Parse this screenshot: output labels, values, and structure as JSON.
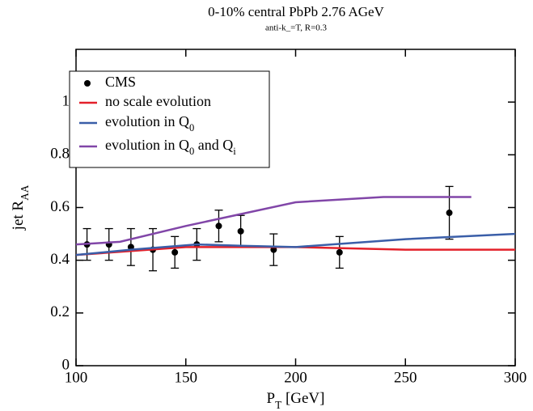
{
  "chart_data": {
    "type": "line",
    "title": "0-10% central PbPb 2.76 AGeV",
    "subtitle": "anti-k_=T, R=0.3",
    "xlabel": "P_T [GeV]",
    "ylabel": "jet R_AA",
    "xlim": [
      100,
      300
    ],
    "xticks": [
      100,
      150,
      200,
      250,
      300
    ],
    "ylim": [
      0,
      1.2
    ],
    "yticks": [
      0,
      0.2,
      0.4,
      0.6,
      0.8,
      1
    ],
    "legend": "upper left",
    "series": [
      {
        "name": "CMS",
        "kind": "errorbar",
        "color": "#000000",
        "x": [
          105,
          115,
          125,
          135,
          145,
          155,
          165,
          175,
          190,
          220,
          270
        ],
        "values": [
          0.46,
          0.46,
          0.45,
          0.44,
          0.43,
          0.46,
          0.53,
          0.51,
          0.44,
          0.43,
          0.58
        ],
        "errors": [
          0.06,
          0.06,
          0.07,
          0.08,
          0.06,
          0.06,
          0.06,
          0.06,
          0.06,
          0.06,
          0.1
        ]
      },
      {
        "name": "no scale evolution",
        "kind": "line",
        "color": "#e3202a",
        "x": [
          100,
          125,
          150,
          175,
          200,
          250,
          300
        ],
        "values": [
          0.42,
          0.435,
          0.45,
          0.45,
          0.45,
          0.44,
          0.44
        ]
      },
      {
        "name": "evolution in Q_0",
        "kind": "line",
        "color": "#3a5ea8",
        "x": [
          100,
          125,
          155,
          175,
          200,
          250,
          300
        ],
        "values": [
          0.42,
          0.44,
          0.46,
          0.455,
          0.45,
          0.48,
          0.5
        ]
      },
      {
        "name": "evolution in Q_0 and Q_i",
        "kind": "line",
        "color": "#8146a8",
        "x": [
          100,
          120,
          150,
          175,
          200,
          240,
          280
        ],
        "values": [
          0.46,
          0.47,
          0.53,
          0.575,
          0.62,
          0.64,
          0.64
        ]
      }
    ]
  }
}
